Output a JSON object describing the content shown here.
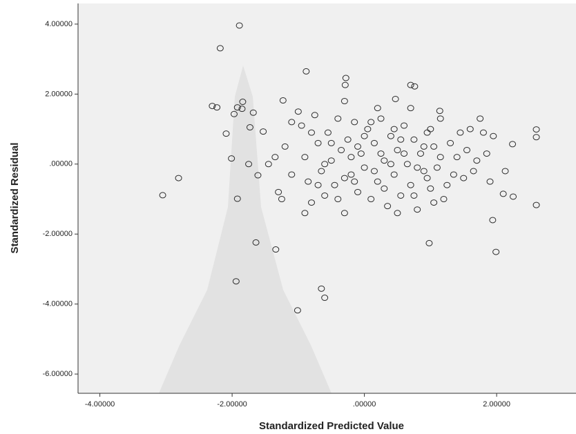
{
  "chart_data": {
    "type": "scatter",
    "xlabel": "Standardized Predicted Value",
    "ylabel": "Standardized Residual",
    "color": "#2a2a2a",
    "xlim": [
      -4.33,
      3.2
    ],
    "ylim": [
      -6.55,
      4.59
    ],
    "xticks": [
      {
        "value": -4,
        "label": "-4.00000"
      },
      {
        "value": -2,
        "label": "-2.00000"
      },
      {
        "value": 0,
        "label": ".00000"
      },
      {
        "value": 2,
        "label": "2.00000"
      }
    ],
    "yticks": [
      {
        "value": 4,
        "label": "4.00000"
      },
      {
        "value": 2,
        "label": "2.00000"
      },
      {
        "value": 0,
        "label": ".00000"
      },
      {
        "value": -2,
        "label": "-2.00000"
      },
      {
        "value": -4,
        "label": "-4.00000"
      },
      {
        "value": -6,
        "label": "-6.00000"
      }
    ],
    "x": [
      -1.89,
      -2.18,
      -0.88,
      -0.28,
      -0.29,
      0.7,
      0.76,
      -2.3,
      -2.23,
      -1.92,
      -1.84,
      -1.85,
      -1.97,
      -1.68,
      -1.73,
      -1.53,
      -2.09,
      -2.01,
      -1.75,
      -1.61,
      -2.81,
      -3.05,
      -1.92,
      -1.64,
      -1.34,
      -1.94,
      -0.65,
      -0.6,
      -1.01,
      2.6,
      2.6,
      2.6,
      2.24,
      2.25,
      2.13,
      2.1,
      1.94,
      1.99,
      0.98,
      1.14,
      0.47,
      -1.23,
      -1.2,
      -1.1,
      -1.0,
      -0.95,
      -0.9,
      -0.85,
      -0.8,
      -0.75,
      -0.7,
      -0.65,
      -0.6,
      -0.55,
      -0.5,
      -0.45,
      -0.4,
      -0.35,
      -0.3,
      -0.25,
      -0.2,
      -0.15,
      -0.1,
      -0.05,
      0.0,
      0.05,
      0.1,
      0.15,
      0.2,
      0.25,
      0.3,
      0.35,
      0.4,
      0.45,
      0.5,
      0.55,
      0.6,
      0.65,
      0.7,
      0.75,
      0.8,
      0.85,
      0.9,
      0.95,
      1.0,
      1.05,
      1.1,
      1.15,
      1.2,
      1.3,
      1.4,
      1.5,
      1.6,
      1.7,
      1.8,
      1.9,
      1.75,
      1.45,
      1.25,
      0.7,
      0.2,
      -0.3,
      -0.6,
      -0.9,
      -1.1,
      -1.3,
      -1.35,
      -1.45,
      -1.25,
      0.9,
      0.3,
      -0.1,
      0.5,
      1.0,
      -0.4,
      0.0,
      0.6,
      -0.2,
      0.8,
      1.35,
      1.55,
      1.05,
      -0.7,
      -0.5,
      0.15,
      0.4,
      0.75,
      0.25,
      -0.15,
      0.55,
      1.15,
      1.65,
      -0.8,
      -0.3,
      0.1,
      0.45,
      0.95,
      1.85,
      1.95
    ],
    "values": [
      3.96,
      3.31,
      2.65,
      2.46,
      2.26,
      2.26,
      2.22,
      1.66,
      1.62,
      1.62,
      1.78,
      1.58,
      1.43,
      1.47,
      1.05,
      0.93,
      0.87,
      0.16,
      0.0,
      -0.32,
      -0.4,
      -0.89,
      -0.99,
      -2.24,
      -2.44,
      -3.35,
      -3.56,
      -3.82,
      -4.18,
      0.99,
      0.77,
      -1.17,
      0.57,
      -0.93,
      -0.2,
      -0.85,
      -1.6,
      -2.51,
      -2.26,
      1.52,
      1.86,
      1.82,
      0.5,
      1.2,
      1.5,
      1.1,
      0.2,
      -0.5,
      -1.1,
      1.4,
      0.6,
      -0.2,
      -0.9,
      0.9,
      0.1,
      -0.6,
      1.3,
      0.4,
      -1.4,
      0.7,
      -0.3,
      1.2,
      -0.8,
      0.3,
      -0.1,
      1.0,
      -1.0,
      0.6,
      -0.5,
      1.3,
      0.1,
      -1.2,
      0.8,
      -0.3,
      0.4,
      -0.9,
      1.1,
      0.0,
      -0.6,
      0.7,
      -1.3,
      0.3,
      -0.2,
      0.9,
      -0.7,
      0.5,
      -0.1,
      1.3,
      -1.0,
      0.6,
      0.2,
      -0.4,
      1.0,
      0.1,
      0.9,
      -0.5,
      1.3,
      0.9,
      -0.6,
      1.6,
      1.6,
      1.8,
      0.0,
      -1.4,
      -0.3,
      -0.8,
      0.2,
      0.0,
      -1.0,
      0.5,
      -0.7,
      0.5,
      -1.4,
      1.0,
      -1.0,
      0.8,
      0.3,
      0.2,
      -0.1,
      -0.3,
      0.4,
      -1.1,
      -0.6,
      0.6,
      -0.2,
      0.0,
      -0.9,
      0.3,
      -0.5,
      0.7,
      0.2,
      -0.2,
      0.9,
      -0.4,
      1.2,
      1.0,
      -0.4,
      0.3,
      0.8
    ]
  }
}
